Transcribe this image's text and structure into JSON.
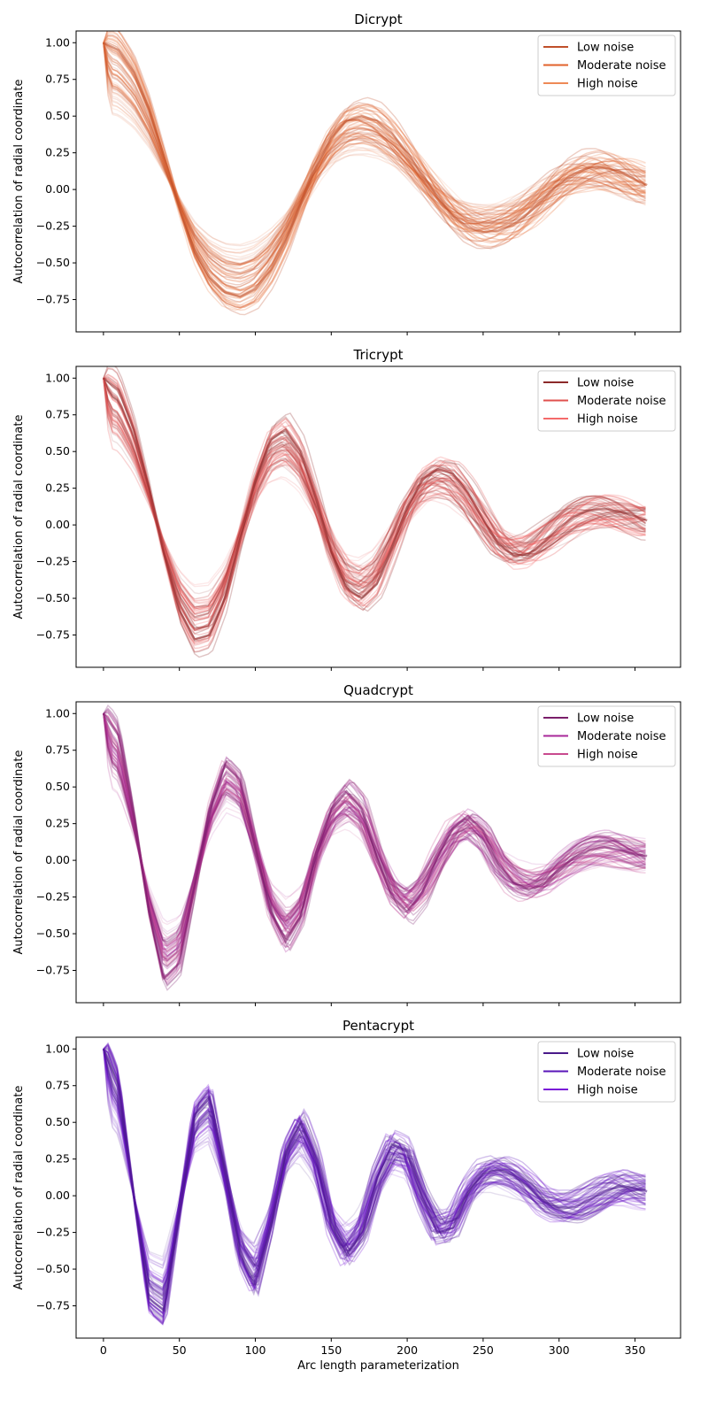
{
  "chart_data": [
    {
      "type": "line",
      "title": "Dicrypt",
      "xlabel": "",
      "ylabel": "Autocorrelation of radial coordinate",
      "xlim": [
        -18,
        380
      ],
      "ylim": [
        -0.97,
        1.08
      ],
      "xticks": [
        0,
        50,
        100,
        150,
        200,
        250,
        300,
        350
      ],
      "yticks": [
        1.0,
        0.75,
        0.5,
        0.25,
        0.0,
        -0.25,
        -0.5,
        -0.75
      ],
      "ytick_labels": [
        "1.00",
        "0.75",
        "0.50",
        "0.25",
        "0.00",
        "−0.25",
        "−0.50",
        "−0.75"
      ],
      "show_xtick_labels": false,
      "legend_position": "upper right",
      "series": [
        {
          "name": "Low noise",
          "color": "#c0502a"
        },
        {
          "name": "Moderate noise",
          "color": "#e2622b"
        },
        {
          "name": "High noise",
          "color": "#ee8a56"
        }
      ],
      "envelope": {
        "x": [
          0,
          10,
          20,
          30,
          40,
          50,
          60,
          70,
          80,
          90,
          100,
          110,
          120,
          130,
          140,
          150,
          160,
          170,
          180,
          190,
          200,
          210,
          220,
          230,
          240,
          250,
          260,
          270,
          280,
          290,
          300,
          310,
          320,
          330,
          340,
          350,
          358
        ],
        "y": [
          1.0,
          0.95,
          0.8,
          0.55,
          0.22,
          -0.12,
          -0.42,
          -0.6,
          -0.7,
          -0.73,
          -0.68,
          -0.55,
          -0.35,
          -0.1,
          0.15,
          0.35,
          0.47,
          0.5,
          0.47,
          0.38,
          0.25,
          0.1,
          -0.05,
          -0.18,
          -0.26,
          -0.29,
          -0.28,
          -0.24,
          -0.16,
          -0.06,
          0.04,
          0.11,
          0.15,
          0.15,
          0.12,
          0.07,
          0.03
        ]
      },
      "overlay_curves": 60
    },
    {
      "type": "line",
      "title": "Tricrypt",
      "xlabel": "",
      "ylabel": "Autocorrelation of radial coordinate",
      "xlim": [
        -18,
        380
      ],
      "ylim": [
        -0.97,
        1.08
      ],
      "xticks": [
        0,
        50,
        100,
        150,
        200,
        250,
        300,
        350
      ],
      "yticks": [
        1.0,
        0.75,
        0.5,
        0.25,
        0.0,
        -0.25,
        -0.5,
        -0.75
      ],
      "ytick_labels": [
        "1.00",
        "0.75",
        "0.50",
        "0.25",
        "0.00",
        "−0.25",
        "−0.50",
        "−0.75"
      ],
      "show_xtick_labels": false,
      "legend_position": "upper right",
      "series": [
        {
          "name": "Low noise",
          "color": "#8c2a2a"
        },
        {
          "name": "Moderate noise",
          "color": "#e0504e"
        },
        {
          "name": "High noise",
          "color": "#f46a6a"
        }
      ],
      "envelope": {
        "x": [
          0,
          10,
          20,
          30,
          40,
          50,
          60,
          70,
          80,
          90,
          100,
          110,
          120,
          130,
          140,
          150,
          160,
          170,
          180,
          190,
          200,
          210,
          220,
          230,
          240,
          250,
          260,
          270,
          280,
          290,
          300,
          310,
          320,
          330,
          340,
          350,
          358
        ],
        "y": [
          1.0,
          0.92,
          0.65,
          0.25,
          -0.2,
          -0.58,
          -0.78,
          -0.75,
          -0.5,
          -0.1,
          0.3,
          0.58,
          0.65,
          0.5,
          0.18,
          -0.18,
          -0.43,
          -0.5,
          -0.4,
          -0.15,
          0.12,
          0.31,
          0.38,
          0.35,
          0.22,
          0.04,
          -0.13,
          -0.21,
          -0.2,
          -0.12,
          -0.02,
          0.06,
          0.1,
          0.11,
          0.09,
          0.06,
          0.03
        ]
      },
      "overlay_curves": 60
    },
    {
      "type": "line",
      "title": "Quadcrypt",
      "xlabel": "",
      "ylabel": "Autocorrelation of radial coordinate",
      "xlim": [
        -18,
        380
      ],
      "ylim": [
        -0.97,
        1.08
      ],
      "xticks": [
        0,
        50,
        100,
        150,
        200,
        250,
        300,
        350
      ],
      "yticks": [
        1.0,
        0.75,
        0.5,
        0.25,
        0.0,
        -0.25,
        -0.5,
        -0.75
      ],
      "ytick_labels": [
        "1.00",
        "0.75",
        "0.50",
        "0.25",
        "0.00",
        "−0.25",
        "−0.50",
        "−0.75"
      ],
      "show_xtick_labels": false,
      "legend_position": "upper right",
      "series": [
        {
          "name": "Low noise",
          "color": "#7a1e6a"
        },
        {
          "name": "Moderate noise",
          "color": "#a8289a"
        },
        {
          "name": "High noise",
          "color": "#c84a8e"
        }
      ],
      "envelope": {
        "x": [
          0,
          10,
          20,
          30,
          40,
          50,
          60,
          70,
          80,
          90,
          100,
          110,
          120,
          130,
          140,
          150,
          160,
          170,
          180,
          190,
          200,
          210,
          220,
          230,
          240,
          250,
          260,
          270,
          280,
          290,
          300,
          310,
          320,
          330,
          340,
          350,
          358
        ],
        "y": [
          1.0,
          0.85,
          0.3,
          -0.35,
          -0.8,
          -0.7,
          -0.18,
          0.35,
          0.65,
          0.55,
          0.1,
          -0.35,
          -0.55,
          -0.38,
          0.05,
          0.35,
          0.47,
          0.35,
          0.02,
          -0.25,
          -0.35,
          -0.22,
          0.02,
          0.22,
          0.3,
          0.2,
          -0.02,
          -0.15,
          -0.2,
          -0.16,
          -0.06,
          0.02,
          0.07,
          0.09,
          0.07,
          0.04,
          0.03
        ]
      },
      "overlay_curves": 60
    },
    {
      "type": "line",
      "title": "Pentacrypt",
      "xlabel": "Arc length parameterization",
      "ylabel": "Autocorrelation of radial coordinate",
      "xlim": [
        -18,
        380
      ],
      "ylim": [
        -0.97,
        1.08
      ],
      "xticks": [
        0,
        50,
        100,
        150,
        200,
        250,
        300,
        350
      ],
      "yticks": [
        1.0,
        0.75,
        0.5,
        0.25,
        0.0,
        -0.25,
        -0.5,
        -0.75
      ],
      "ytick_labels": [
        "1.00",
        "0.75",
        "0.50",
        "0.25",
        "0.00",
        "−0.25",
        "−0.50",
        "−0.75"
      ],
      "show_xtick_labels": true,
      "legend_position": "upper right",
      "series": [
        {
          "name": "Low noise",
          "color": "#4a1a8a"
        },
        {
          "name": "Moderate noise",
          "color": "#5a16b8"
        },
        {
          "name": "High noise",
          "color": "#7a18d8"
        }
      ],
      "envelope": {
        "x": [
          0,
          10,
          20,
          30,
          40,
          50,
          60,
          70,
          80,
          90,
          100,
          110,
          120,
          130,
          140,
          150,
          160,
          170,
          180,
          190,
          200,
          210,
          220,
          230,
          240,
          250,
          260,
          270,
          280,
          290,
          300,
          310,
          320,
          330,
          340,
          350,
          358
        ],
        "y": [
          1.0,
          0.75,
          0.0,
          -0.7,
          -0.78,
          -0.1,
          0.55,
          0.67,
          0.15,
          -0.4,
          -0.6,
          -0.2,
          0.3,
          0.5,
          0.25,
          -0.2,
          -0.4,
          -0.25,
          0.12,
          0.35,
          0.3,
          -0.02,
          -0.25,
          -0.22,
          0.02,
          0.15,
          0.18,
          0.14,
          0.06,
          -0.04,
          -0.08,
          -0.08,
          -0.03,
          0.03,
          0.07,
          0.05,
          0.03
        ]
      },
      "overlay_curves": 60
    }
  ]
}
